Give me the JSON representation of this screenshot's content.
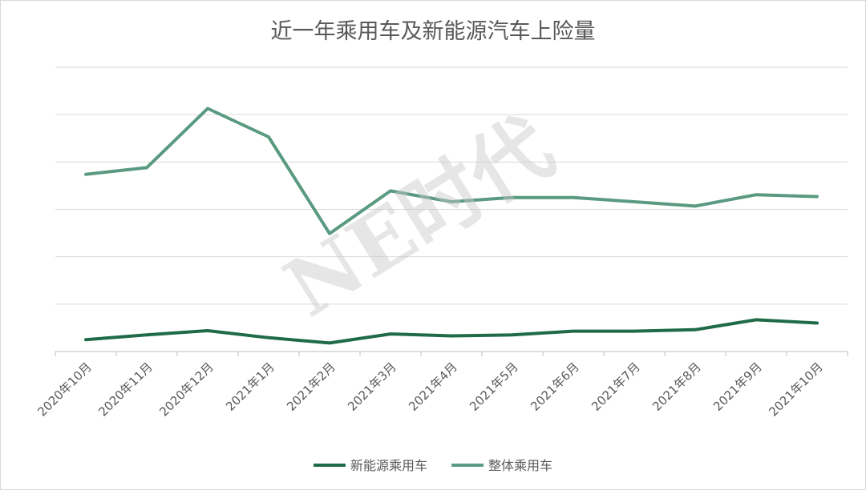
{
  "chart_data": {
    "type": "line",
    "title": "近一年乘用车及新能源汽车上险量",
    "xlabel": "",
    "ylabel": "",
    "categories": [
      "2020年10月",
      "2020年11月",
      "2020年12月",
      "2021年1月",
      "2021年2月",
      "2021年3月",
      "2021年4月",
      "2021年5月",
      "2021年6月",
      "2021年7月",
      "2021年8月",
      "2021年9月",
      "2021年10月"
    ],
    "ylim": [
      0,
      600
    ],
    "y_tick_labels_visible": false,
    "grid": true,
    "legend": "bottom",
    "series": [
      {
        "name": "新能源乘用车",
        "color": "#1f6b47",
        "values": [
          25,
          35,
          44,
          29,
          18,
          37,
          33,
          35,
          43,
          43,
          46,
          67,
          60
        ]
      },
      {
        "name": "整体乘用车",
        "color": "#5a9a80",
        "values": [
          374,
          388,
          513,
          453,
          249,
          339,
          316,
          325,
          325,
          316,
          307,
          331,
          327
        ]
      }
    ],
    "watermark": "NE时代"
  }
}
